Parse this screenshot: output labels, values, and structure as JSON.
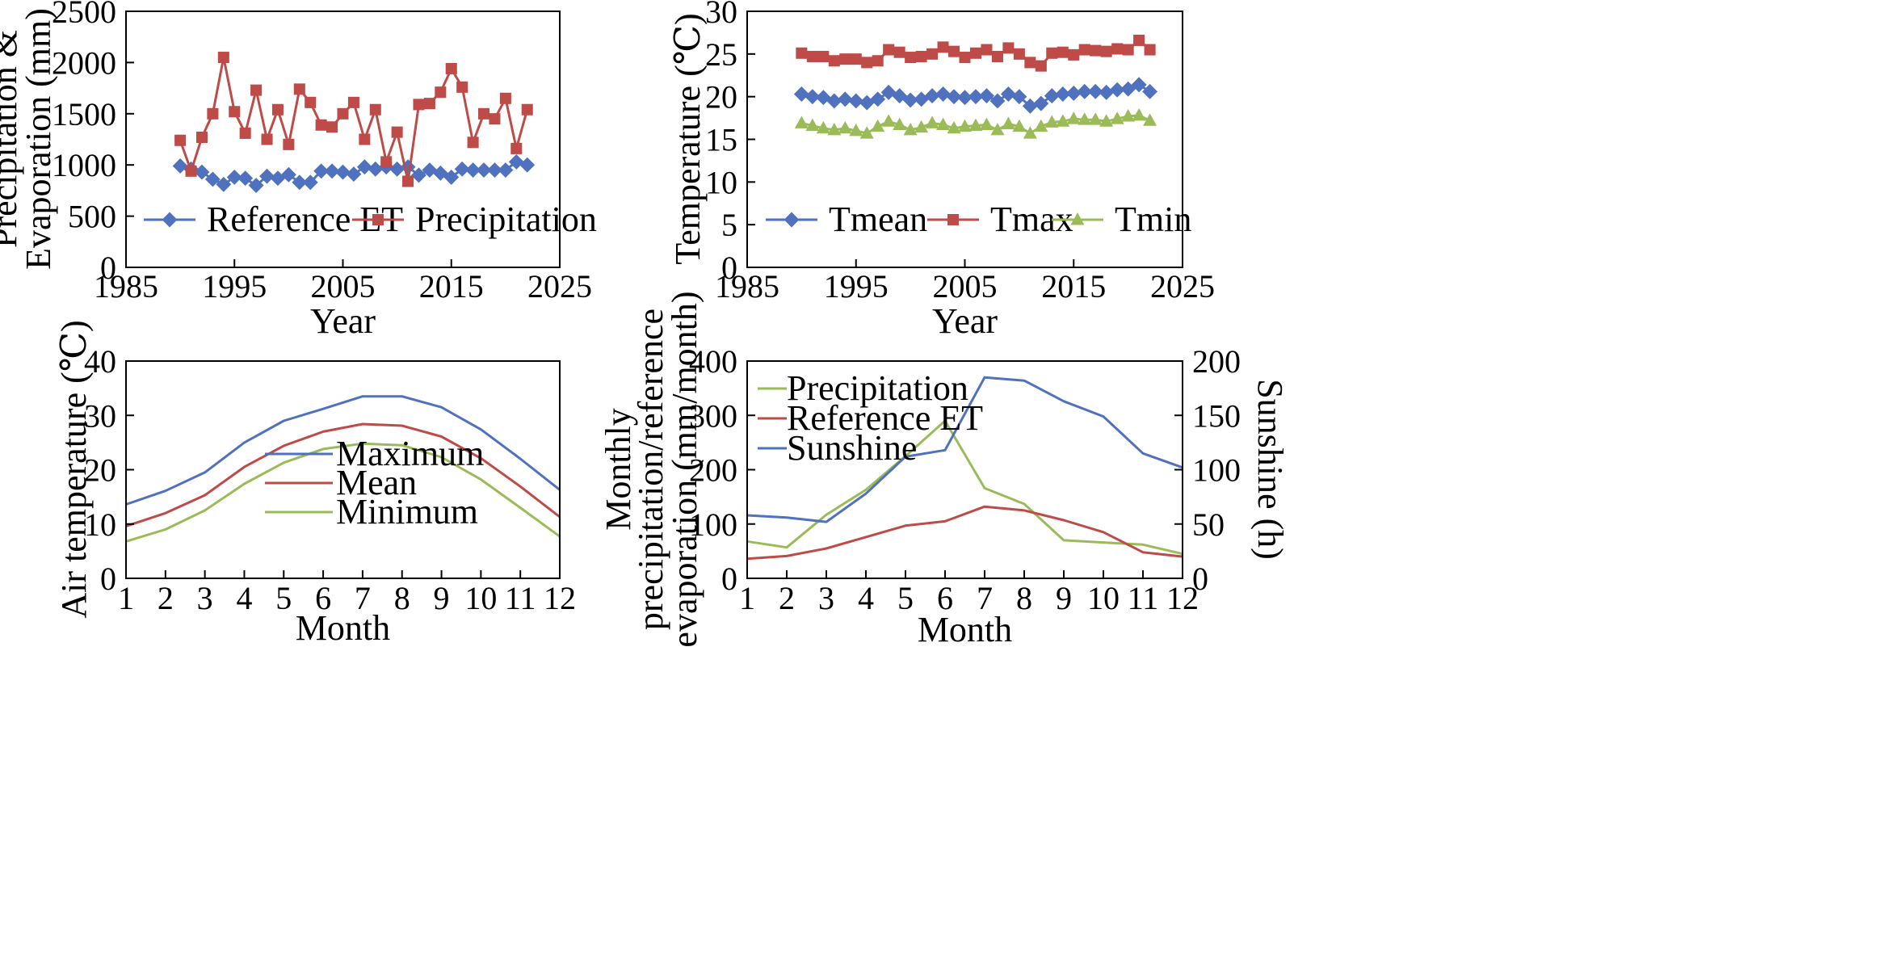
{
  "chart_data": [
    {
      "type": "line",
      "xlabel": "Year",
      "ylabel_lines": [
        "Precipitation &",
        "Evaporation (mm)"
      ],
      "xlim": [
        1985,
        2025
      ],
      "ylim": [
        0,
        2500
      ],
      "xticks": [
        1985,
        1995,
        2005,
        2015,
        2025
      ],
      "yticks": [
        0,
        500,
        1000,
        1500,
        2000,
        2500
      ],
      "legend": "bottom-left",
      "grid": false,
      "x": [
        1990,
        1991,
        1992,
        1993,
        1994,
        1995,
        1996,
        1997,
        1998,
        1999,
        2000,
        2001,
        2002,
        2003,
        2004,
        2005,
        2006,
        2007,
        2008,
        2009,
        2010,
        2011,
        2012,
        2013,
        2014,
        2015,
        2016,
        2017,
        2018,
        2019,
        2020,
        2021,
        2022
      ],
      "series": [
        {
          "name": "Reference ET",
          "color": "#4f71be",
          "marker": "diamond",
          "values": [
            990,
            960,
            930,
            860,
            810,
            880,
            870,
            800,
            890,
            870,
            905,
            830,
            830,
            940,
            940,
            930,
            910,
            980,
            960,
            980,
            960,
            980,
            900,
            950,
            920,
            880,
            960,
            950,
            950,
            950,
            950,
            1030,
            1000
          ]
        },
        {
          "name": "Precipitation",
          "color": "#be4b48",
          "marker": "square",
          "values": [
            1240,
            940,
            1270,
            1500,
            2050,
            1520,
            1310,
            1730,
            1250,
            1540,
            1200,
            1740,
            1610,
            1390,
            1370,
            1500,
            1610,
            1250,
            1540,
            1030,
            1320,
            840,
            1590,
            1600,
            1710,
            1940,
            1760,
            1220,
            1500,
            1450,
            1650,
            1160,
            1540
          ]
        }
      ]
    },
    {
      "type": "line",
      "xlabel": "Year",
      "ylabel": "Temperature (℃)",
      "xlim": [
        1985,
        2025
      ],
      "ylim": [
        0,
        30
      ],
      "xticks": [
        1985,
        1995,
        2005,
        2015,
        2025
      ],
      "yticks": [
        0,
        5,
        10,
        15,
        20,
        25,
        30
      ],
      "legend": "bottom-left",
      "grid": false,
      "x": [
        1990,
        1991,
        1992,
        1993,
        1994,
        1995,
        1996,
        1997,
        1998,
        1999,
        2000,
        2001,
        2002,
        2003,
        2004,
        2005,
        2006,
        2007,
        2008,
        2009,
        2010,
        2011,
        2012,
        2013,
        2014,
        2015,
        2016,
        2017,
        2018,
        2019,
        2020,
        2021,
        2022
      ],
      "series": [
        {
          "name": "Tmean",
          "color": "#4f71be",
          "marker": "diamond",
          "values": [
            20.3,
            20.0,
            19.9,
            19.5,
            19.7,
            19.5,
            19.3,
            19.7,
            20.5,
            20.1,
            19.6,
            19.7,
            20.1,
            20.3,
            20.0,
            19.9,
            20.0,
            20.1,
            19.5,
            20.3,
            20.0,
            18.9,
            19.2,
            20.1,
            20.3,
            20.4,
            20.6,
            20.6,
            20.5,
            20.8,
            20.9,
            21.4,
            20.6
          ]
        },
        {
          "name": "Tmax",
          "color": "#be4b48",
          "marker": "square",
          "values": [
            25.1,
            24.7,
            24.7,
            24.2,
            24.4,
            24.4,
            24.0,
            24.2,
            25.5,
            25.2,
            24.6,
            24.7,
            25.0,
            25.8,
            25.3,
            24.6,
            25.1,
            25.5,
            24.7,
            25.7,
            25.0,
            24.0,
            23.6,
            25.1,
            25.2,
            24.9,
            25.5,
            25.4,
            25.3,
            25.6,
            25.5,
            26.6,
            25.5
          ]
        },
        {
          "name": "Tmin",
          "color": "#9bbb59",
          "marker": "triangle",
          "values": [
            16.9,
            16.6,
            16.3,
            16.1,
            16.3,
            16.0,
            15.7,
            16.5,
            17.1,
            16.7,
            16.1,
            16.4,
            16.9,
            16.7,
            16.3,
            16.5,
            16.6,
            16.7,
            16.1,
            16.8,
            16.5,
            15.7,
            16.5,
            17.0,
            17.1,
            17.4,
            17.3,
            17.3,
            17.1,
            17.4,
            17.7,
            17.8,
            17.2
          ]
        }
      ]
    },
    {
      "type": "line",
      "xlabel": "Month",
      "ylabel": "Air temperature (℃)",
      "xlim": [
        1,
        12
      ],
      "ylim": [
        0,
        40
      ],
      "xticks": [
        1,
        2,
        3,
        4,
        5,
        6,
        7,
        8,
        9,
        10,
        11,
        12
      ],
      "yticks": [
        0,
        10,
        20,
        30,
        40
      ],
      "legend": "center",
      "grid": false,
      "x": [
        1,
        2,
        3,
        4,
        5,
        6,
        7,
        8,
        9,
        10,
        11,
        12
      ],
      "series": [
        {
          "name": "Maximum",
          "color": "#4f71be",
          "values": [
            13.6,
            16.1,
            19.5,
            25.0,
            29.0,
            31.2,
            33.5,
            33.5,
            31.5,
            27.4,
            22.0,
            16.3
          ]
        },
        {
          "name": "Mean",
          "color": "#be4b48",
          "values": [
            9.6,
            12.0,
            15.3,
            20.5,
            24.4,
            27.0,
            28.4,
            28.1,
            26.1,
            22.1,
            16.9,
            11.3
          ]
        },
        {
          "name": "Minimum",
          "color": "#9bbb59",
          "values": [
            6.8,
            9.0,
            12.5,
            17.4,
            21.3,
            23.8,
            24.8,
            24.5,
            22.3,
            18.2,
            13.0,
            7.7
          ]
        }
      ]
    },
    {
      "type": "line",
      "xlabel": "Month",
      "ylabel_lines": [
        "Monthly",
        "precipitation/reference",
        "evaporation (mm/month)"
      ],
      "y2label": "Sunshine (h)",
      "xlim": [
        1,
        12
      ],
      "ylim": [
        0,
        400
      ],
      "y2lim": [
        0,
        200
      ],
      "xticks": [
        1,
        2,
        3,
        4,
        5,
        6,
        7,
        8,
        9,
        10,
        11,
        12
      ],
      "yticks": [
        0,
        100,
        200,
        300,
        400
      ],
      "y2ticks": [
        0,
        50,
        100,
        150,
        200
      ],
      "legend": "top-left",
      "grid": false,
      "x": [
        1,
        2,
        3,
        4,
        5,
        6,
        7,
        8,
        9,
        10,
        11,
        12
      ],
      "series": [
        {
          "name": "Precipitation",
          "color": "#9bbb59",
          "axis": "left",
          "values": [
            68,
            57,
            117,
            163,
            225,
            290,
            166,
            137,
            70,
            66,
            62,
            45
          ]
        },
        {
          "name": "Reference ET",
          "color": "#be4b48",
          "axis": "left",
          "values": [
            36,
            41,
            55,
            76,
            97,
            105,
            132,
            125,
            107,
            85,
            48,
            40
          ]
        },
        {
          "name": "Sunshine",
          "color": "#4f71be",
          "axis": "right",
          "values": [
            58,
            56,
            52,
            78,
            112,
            118,
            185,
            182,
            163,
            149,
            115,
            102
          ]
        }
      ]
    }
  ]
}
